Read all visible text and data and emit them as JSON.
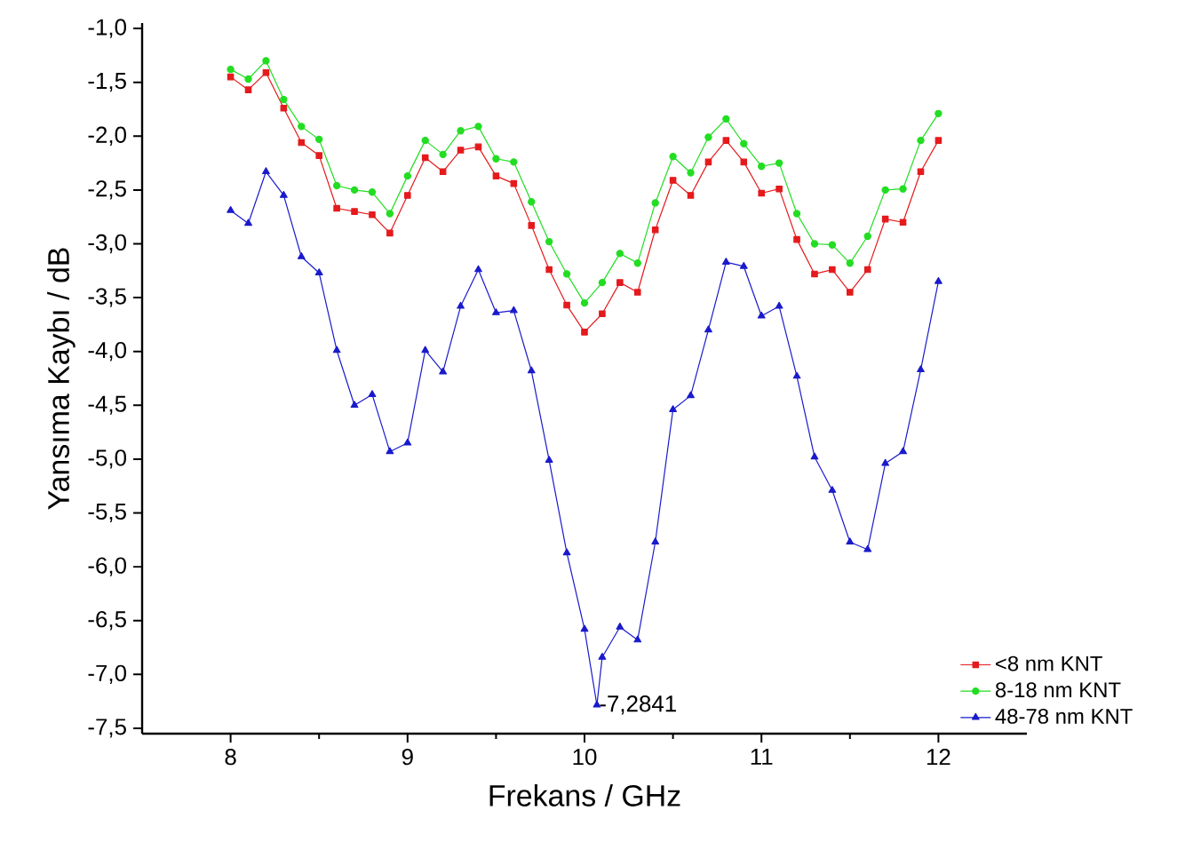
{
  "chart_data": {
    "type": "line",
    "xlabel": "Frekans / GHz",
    "ylabel": "Yansıma Kaybı / dB",
    "xlim": [
      7.5,
      12.5
    ],
    "xticks": [
      8,
      9,
      10,
      11,
      12
    ],
    "ylim": [
      -7.55,
      -0.95
    ],
    "yticks": [
      {
        "value": -1.0,
        "label": "-1,0"
      },
      {
        "value": -1.5,
        "label": "-1,5"
      },
      {
        "value": -2.0,
        "label": "-2,0"
      },
      {
        "value": -2.5,
        "label": "-2,5"
      },
      {
        "value": -3.0,
        "label": "-3,0"
      },
      {
        "value": -3.5,
        "label": "-3,5"
      },
      {
        "value": -4.0,
        "label": "-4,0"
      },
      {
        "value": -4.5,
        "label": "-4,5"
      },
      {
        "value": -5.0,
        "label": "-5,0"
      },
      {
        "value": -5.5,
        "label": "-5,5"
      },
      {
        "value": -6.0,
        "label": "-6,0"
      },
      {
        "value": -6.5,
        "label": "-6,5"
      },
      {
        "value": -7.0,
        "label": "-7,0"
      },
      {
        "value": -7.5,
        "label": "-7,5"
      }
    ],
    "x": [
      8.0,
      8.1,
      8.2,
      8.3,
      8.4,
      8.5,
      8.6,
      8.7,
      8.8,
      8.9,
      9.0,
      9.1,
      9.2,
      9.3,
      9.4,
      9.5,
      9.6,
      9.7,
      9.8,
      9.9,
      10.0,
      10.1,
      10.2,
      10.3,
      10.4,
      10.5,
      10.6,
      10.7,
      10.8,
      10.9,
      11.0,
      11.1,
      11.2,
      11.3,
      11.4,
      11.5,
      11.6,
      11.7,
      11.8,
      11.9,
      12.0
    ],
    "series": [
      {
        "name": "<8 nm KNT",
        "color": "#e41a1c",
        "marker": "square",
        "values": [
          -1.45,
          -1.57,
          -1.41,
          -1.74,
          -2.06,
          -2.18,
          -2.67,
          -2.7,
          -2.73,
          -2.9,
          -2.55,
          -2.2,
          -2.33,
          -2.13,
          -2.1,
          -2.37,
          -2.44,
          -2.83,
          -3.24,
          -3.57,
          -3.82,
          -3.65,
          -3.36,
          -3.45,
          -2.87,
          -2.41,
          -2.55,
          -2.24,
          -2.04,
          -2.24,
          -2.53,
          -2.49,
          -2.96,
          -3.28,
          -3.24,
          -3.45,
          -3.24,
          -2.77,
          -2.8,
          -2.33,
          -2.04
        ]
      },
      {
        "name": "8-18 nm KNT",
        "color": "#22dd22",
        "marker": "circle",
        "values": [
          -1.38,
          -1.47,
          -1.3,
          -1.66,
          -1.91,
          -2.03,
          -2.46,
          -2.5,
          -2.52,
          -2.72,
          -2.37,
          -2.04,
          -2.17,
          -1.95,
          -1.91,
          -2.21,
          -2.24,
          -2.61,
          -2.98,
          -3.28,
          -3.55,
          -3.36,
          -3.09,
          -3.18,
          -2.62,
          -2.19,
          -2.34,
          -2.01,
          -1.84,
          -2.07,
          -2.28,
          -2.25,
          -2.72,
          -3.0,
          -3.01,
          -3.18,
          -2.93,
          -2.5,
          -2.49,
          -2.04,
          -1.79
        ]
      },
      {
        "name": "48-78 nm KNT",
        "color": "#1a1acc",
        "marker": "triangle",
        "x": [
          8.0,
          8.1,
          8.2,
          8.3,
          8.4,
          8.5,
          8.6,
          8.7,
          8.8,
          8.9,
          9.0,
          9.1,
          9.2,
          9.3,
          9.4,
          9.5,
          9.6,
          9.7,
          9.8,
          9.9,
          10.0,
          10.07,
          10.1,
          10.2,
          10.3,
          10.4,
          10.5,
          10.6,
          10.7,
          10.8,
          10.9,
          11.0,
          11.1,
          11.2,
          11.3,
          11.4,
          11.5,
          11.6,
          11.7,
          11.8,
          11.9,
          12.0
        ],
        "values": [
          -2.69,
          -2.81,
          -2.33,
          -2.55,
          -3.12,
          -3.27,
          -3.99,
          -4.5,
          -4.4,
          -4.93,
          -4.85,
          -3.99,
          -4.19,
          -3.58,
          -3.24,
          -3.64,
          -3.62,
          -4.18,
          -5.01,
          -5.87,
          -6.58,
          -7.2841,
          -6.84,
          -6.56,
          -6.68,
          -5.77,
          -4.54,
          -4.41,
          -3.8,
          -3.17,
          -3.21,
          -3.67,
          -3.58,
          -4.23,
          -4.98,
          -5.29,
          -5.77,
          -5.84,
          -5.04,
          -4.93,
          -4.17,
          -3.35
        ]
      }
    ],
    "annotations": [
      {
        "text": "-7,2841",
        "x": 10.07,
        "y": -7.2841
      }
    ],
    "legend": "bottom right",
    "line_style": "solid",
    "grid": false
  }
}
